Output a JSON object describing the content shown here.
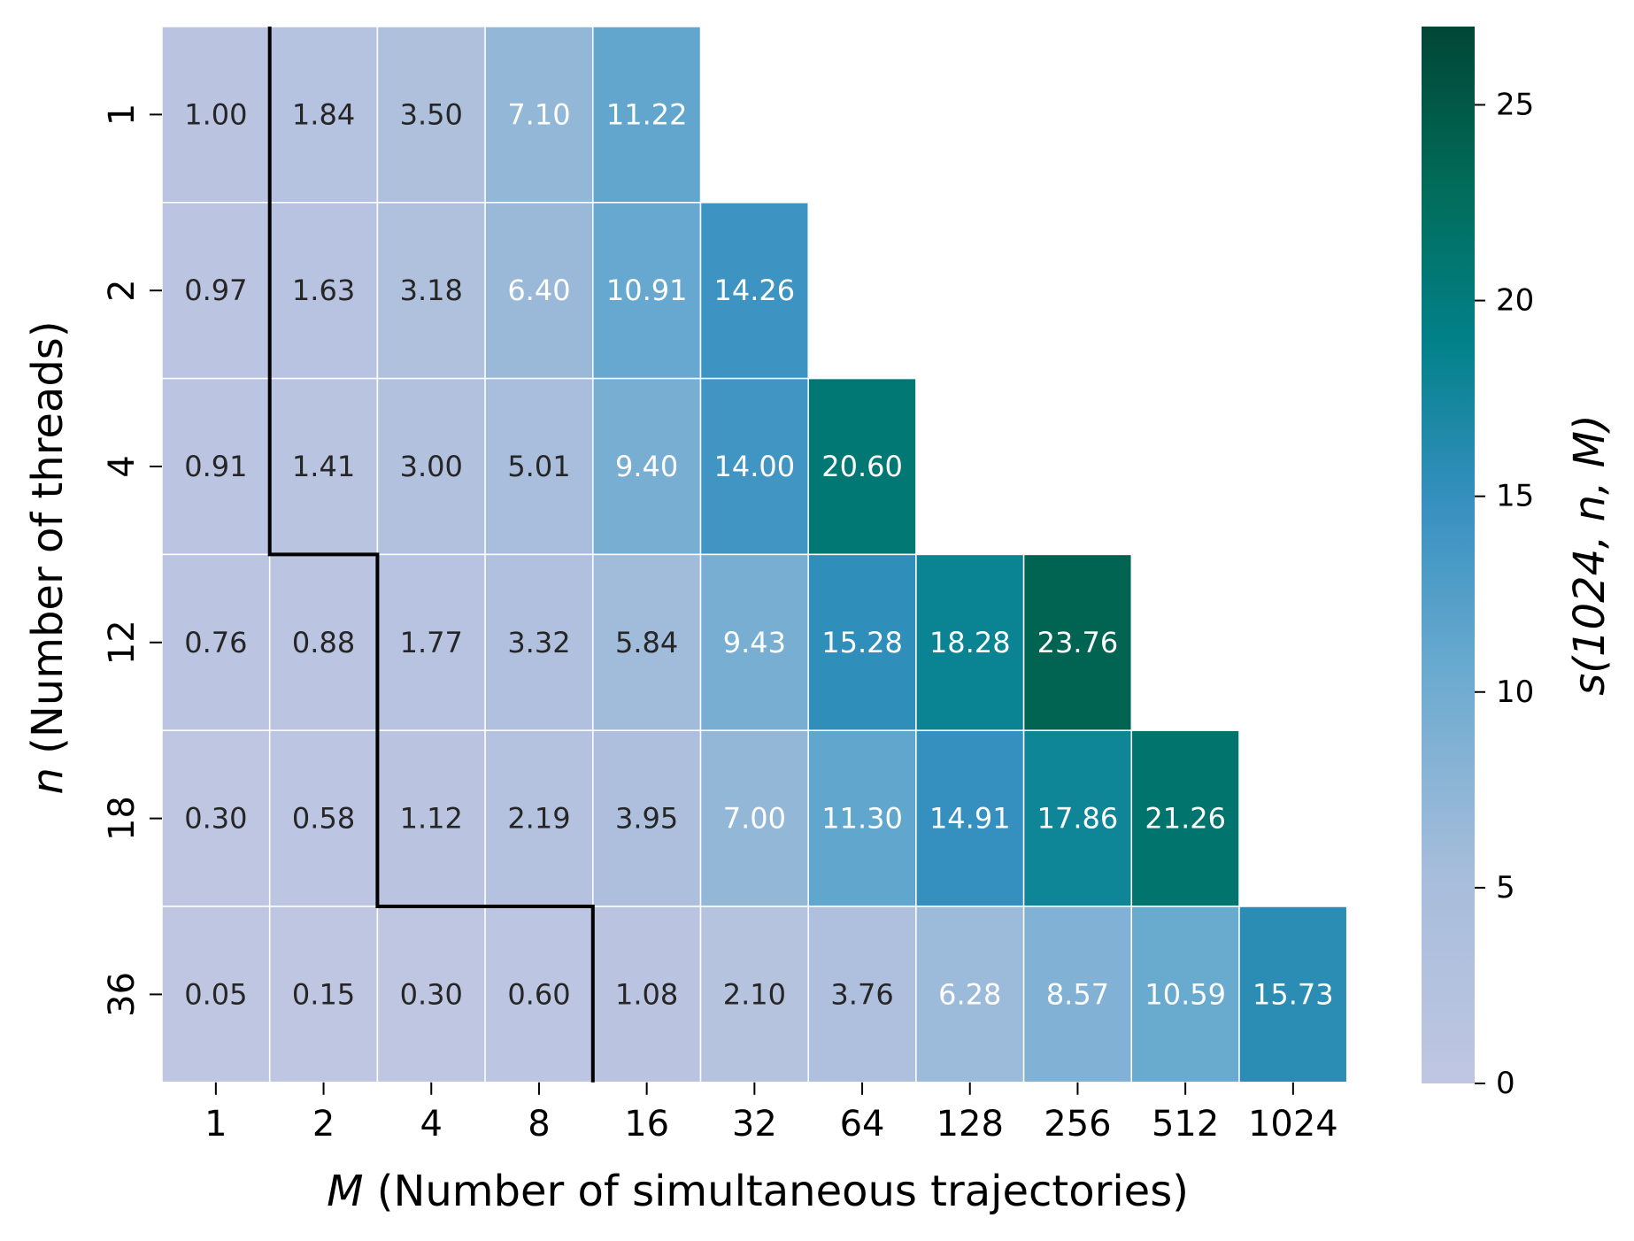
{
  "chart_data": {
    "type": "heatmap",
    "x_categories": [
      "1",
      "2",
      "4",
      "8",
      "16",
      "32",
      "64",
      "128",
      "256",
      "512",
      "1024"
    ],
    "y_categories": [
      "1",
      "2",
      "4",
      "12",
      "18",
      "36"
    ],
    "xlabel_var": "M",
    "xlabel_text": " (Number of simultaneous trajectories)",
    "ylabel_var": "n",
    "ylabel_text": " (Number of threads)",
    "colorbar_label": "s(1024, n, M)",
    "colorbar_range": [
      0,
      27
    ],
    "colorbar_ticks": [
      0,
      5,
      10,
      15,
      20,
      25
    ],
    "colormap": "PuBuGn",
    "values": [
      [
        1.0,
        1.84,
        3.5,
        7.1,
        11.22,
        null,
        null,
        null,
        null,
        null,
        null
      ],
      [
        0.97,
        1.63,
        3.18,
        6.4,
        10.91,
        14.26,
        null,
        null,
        null,
        null,
        null
      ],
      [
        0.91,
        1.41,
        3.0,
        5.01,
        9.4,
        14.0,
        20.6,
        null,
        null,
        null,
        null
      ],
      [
        0.76,
        0.88,
        1.77,
        3.32,
        5.84,
        9.43,
        15.28,
        18.28,
        23.76,
        null,
        null
      ],
      [
        0.3,
        0.58,
        1.12,
        2.19,
        3.95,
        7.0,
        11.3,
        14.91,
        17.86,
        21.26,
        null
      ],
      [
        0.05,
        0.15,
        0.3,
        0.6,
        1.08,
        2.1,
        3.76,
        6.28,
        8.57,
        10.59,
        15.73
      ]
    ],
    "boundary_line_color": "#000000"
  }
}
